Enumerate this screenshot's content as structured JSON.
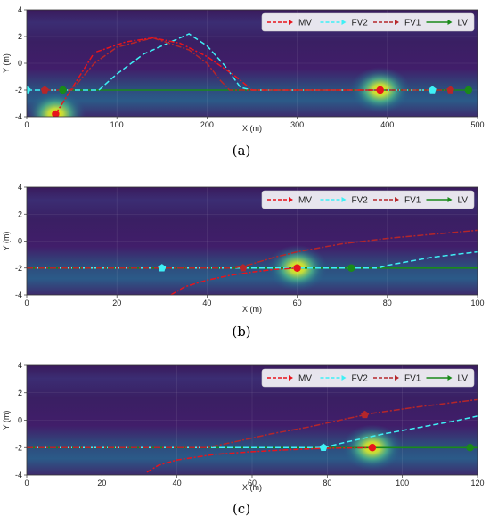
{
  "figure": {
    "legend_labels": [
      "MV",
      "FV2",
      "FV1",
      "LV"
    ]
  },
  "series_style": [
    {
      "name": "MV",
      "color": "#e8141c",
      "dash": "6 2 2 2",
      "marker": "circle"
    },
    {
      "name": "FV2",
      "color": "#3ff0f5",
      "dash": "6 3",
      "marker": "pentagon"
    },
    {
      "name": "FV1",
      "color": "#b5262a",
      "dash": "7 2 2 2",
      "marker": "pentagon"
    },
    {
      "name": "LV",
      "color": "#1a8a1a",
      "dash": "",
      "marker": "circle"
    }
  ],
  "chart_data": [
    {
      "type": "line",
      "caption": "(a)",
      "xlabel": "X (m)",
      "ylabel": "Y (m)",
      "xlim": [
        0,
        500
      ],
      "ylim": [
        -4,
        4
      ],
      "xticks": [
        0,
        100,
        200,
        300,
        400,
        500
      ],
      "yticks": [
        -4,
        -2,
        0,
        2,
        4
      ],
      "legend_position": "top-right",
      "heatmap_peaks": [
        {
          "x": 392,
          "y": -2
        },
        {
          "x": 32,
          "y": -3.8
        }
      ],
      "series": [
        {
          "name": "MV",
          "points": [
            [
              32,
              -3.8
            ],
            [
              48,
              -2.1
            ],
            [
              75,
              0.8
            ],
            [
              110,
              1.6
            ],
            [
              140,
              1.9
            ],
            [
              170,
              1.5
            ],
            [
              200,
              0.5
            ],
            [
              230,
              -0.9
            ],
            [
              250,
              -2.0
            ],
            [
              392,
              -2.0
            ]
          ],
          "marker_at": [
            [
              32,
              -3.8
            ],
            [
              392,
              -2.0
            ]
          ]
        },
        {
          "name": "FV2",
          "points": [
            [
              0,
              -2.0
            ],
            [
              40,
              -2.0
            ],
            [
              80,
              -2.0
            ],
            [
              100,
              -0.8
            ],
            [
              130,
              0.7
            ],
            [
              160,
              1.6
            ],
            [
              180,
              2.2
            ],
            [
              200,
              1.3
            ],
            [
              220,
              -0.2
            ],
            [
              237,
              -1.8
            ],
            [
              250,
              -2.0
            ],
            [
              450,
              -2.0
            ]
          ],
          "marker_at": [
            [
              0,
              -2.0
            ],
            [
              450,
              -2.0
            ]
          ]
        },
        {
          "name": "FV1",
          "points": [
            [
              20,
              -2.0
            ],
            [
              50,
              -2.0
            ],
            [
              75,
              0.0
            ],
            [
              100,
              1.2
            ],
            [
              140,
              1.9
            ],
            [
              180,
              1.0
            ],
            [
              200,
              0.0
            ],
            [
              215,
              -1.3
            ],
            [
              225,
              -2.0
            ],
            [
              470,
              -2.0
            ]
          ],
          "marker_at": [
            [
              20,
              -2.0
            ],
            [
              470,
              -2.0
            ]
          ]
        },
        {
          "name": "LV",
          "points": [
            [
              40,
              -2.0
            ],
            [
              490,
              -2.0
            ]
          ],
          "marker_at": [
            [
              40,
              -2.0
            ],
            [
              490,
              -2.0
            ]
          ]
        }
      ]
    },
    {
      "type": "line",
      "caption": "(b)",
      "xlabel": "X (m)",
      "ylabel": "Y (m)",
      "xlim": [
        0,
        100
      ],
      "ylim": [
        -4,
        4
      ],
      "xticks": [
        0,
        20,
        40,
        60,
        80,
        100
      ],
      "yticks": [
        -4,
        -2,
        0,
        2,
        4
      ],
      "legend_position": "top-right",
      "heatmap_peaks": [
        {
          "x": 60,
          "y": -2
        }
      ],
      "series": [
        {
          "name": "MV",
          "points": [
            [
              32,
              -4.0
            ],
            [
              35,
              -3.4
            ],
            [
              40,
              -2.9
            ],
            [
              45,
              -2.55
            ],
            [
              50,
              -2.3
            ],
            [
              55,
              -2.1
            ],
            [
              60,
              -2.0
            ]
          ],
          "marker_at": [
            [
              60,
              -2.0
            ]
          ]
        },
        {
          "name": "FV2",
          "points": [
            [
              0,
              -2.0
            ],
            [
              30,
              -2.0
            ],
            [
              78,
              -2.0
            ],
            [
              80,
              -1.8
            ],
            [
              85,
              -1.5
            ],
            [
              90,
              -1.2
            ],
            [
              95,
              -1.0
            ],
            [
              100,
              -0.8
            ]
          ],
          "marker_at": [
            [
              30,
              -2.0
            ]
          ]
        },
        {
          "name": "FV1",
          "points": [
            [
              0,
              -2.0
            ],
            [
              46,
              -2.0
            ],
            [
              50,
              -1.7
            ],
            [
              55,
              -1.2
            ],
            [
              60,
              -0.8
            ],
            [
              70,
              -0.2
            ],
            [
              80,
              0.2
            ],
            [
              90,
              0.5
            ],
            [
              100,
              0.8
            ]
          ],
          "marker_at": [
            [
              48,
              -2.0
            ]
          ]
        },
        {
          "name": "LV",
          "points": [
            [
              0,
              -2.0
            ],
            [
              100,
              -2.0
            ]
          ],
          "marker_at": [
            [
              72,
              -2.0
            ]
          ]
        }
      ]
    },
    {
      "type": "line",
      "caption": "(c)",
      "xlabel": "X (m)",
      "ylabel": "Y (m)",
      "xlim": [
        0,
        120
      ],
      "ylim": [
        -4,
        4
      ],
      "xticks": [
        0,
        20,
        40,
        60,
        80,
        100,
        120
      ],
      "yticks": [
        -4,
        -2,
        0,
        2,
        4
      ],
      "legend_position": "top-right",
      "heatmap_peaks": [
        {
          "x": 92,
          "y": -2
        }
      ],
      "series": [
        {
          "name": "MV",
          "points": [
            [
              32,
              -3.8
            ],
            [
              35,
              -3.3
            ],
            [
              40,
              -2.9
            ],
            [
              50,
              -2.5
            ],
            [
              60,
              -2.3
            ],
            [
              70,
              -2.15
            ],
            [
              80,
              -2.05
            ],
            [
              92,
              -2.0
            ]
          ],
          "marker_at": [
            [
              92,
              -2.0
            ]
          ]
        },
        {
          "name": "FV2",
          "points": [
            [
              0,
              -2.0
            ],
            [
              79,
              -2.0
            ],
            [
              85,
              -1.6
            ],
            [
              95,
              -1.0
            ],
            [
              105,
              -0.5
            ],
            [
              115,
              0.0
            ],
            [
              120,
              0.3
            ]
          ],
          "marker_at": [
            [
              79,
              -2.0
            ]
          ]
        },
        {
          "name": "FV1",
          "points": [
            [
              0,
              -2.0
            ],
            [
              48,
              -2.0
            ],
            [
              55,
              -1.6
            ],
            [
              65,
              -1.0
            ],
            [
              75,
              -0.5
            ],
            [
              85,
              0.1
            ],
            [
              92,
              0.5
            ],
            [
              105,
              1.0
            ],
            [
              120,
              1.5
            ]
          ],
          "marker_at": [
            [
              90,
              0.4
            ]
          ]
        },
        {
          "name": "LV",
          "points": [
            [
              0,
              -2.0
            ],
            [
              120,
              -2.0
            ]
          ],
          "marker_at": [
            [
              118,
              -2.0
            ]
          ]
        }
      ]
    }
  ]
}
